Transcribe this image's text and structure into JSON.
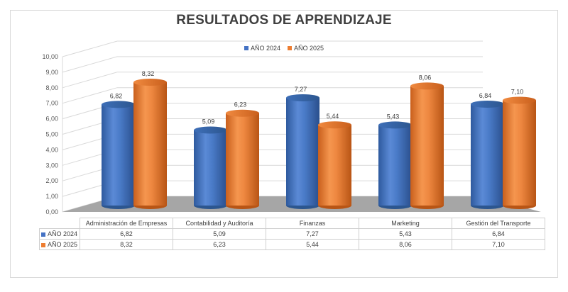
{
  "chart_data": {
    "type": "bar",
    "title": "RESULTADOS DE APRENDIZAJE",
    "categories": [
      "Administración de Empresas",
      "Contabilidad y Auditoría",
      "Finanzas",
      "Marketing",
      "Gestión del Transporte"
    ],
    "series": [
      {
        "name": "AÑO 2024",
        "color": "#4472c4",
        "values": [
          6.82,
          5.09,
          7.27,
          5.43,
          6.84
        ],
        "labels": [
          "6,82",
          "5,09",
          "7,27",
          "5,43",
          "6,84"
        ]
      },
      {
        "name": "AÑO 2025",
        "color": "#ed7d31",
        "values": [
          8.32,
          6.23,
          5.44,
          8.06,
          7.1
        ],
        "labels": [
          "8,32",
          "6,23",
          "5,44",
          "8,06",
          "7,10"
        ]
      }
    ],
    "ylim": [
      0,
      10
    ],
    "yticks": [
      "0,00",
      "1,00",
      "2,00",
      "3,00",
      "4,00",
      "5,00",
      "6,00",
      "7,00",
      "8,00",
      "9,00",
      "10,00"
    ],
    "grid": true,
    "legend": "top-center",
    "data_table": true
  }
}
